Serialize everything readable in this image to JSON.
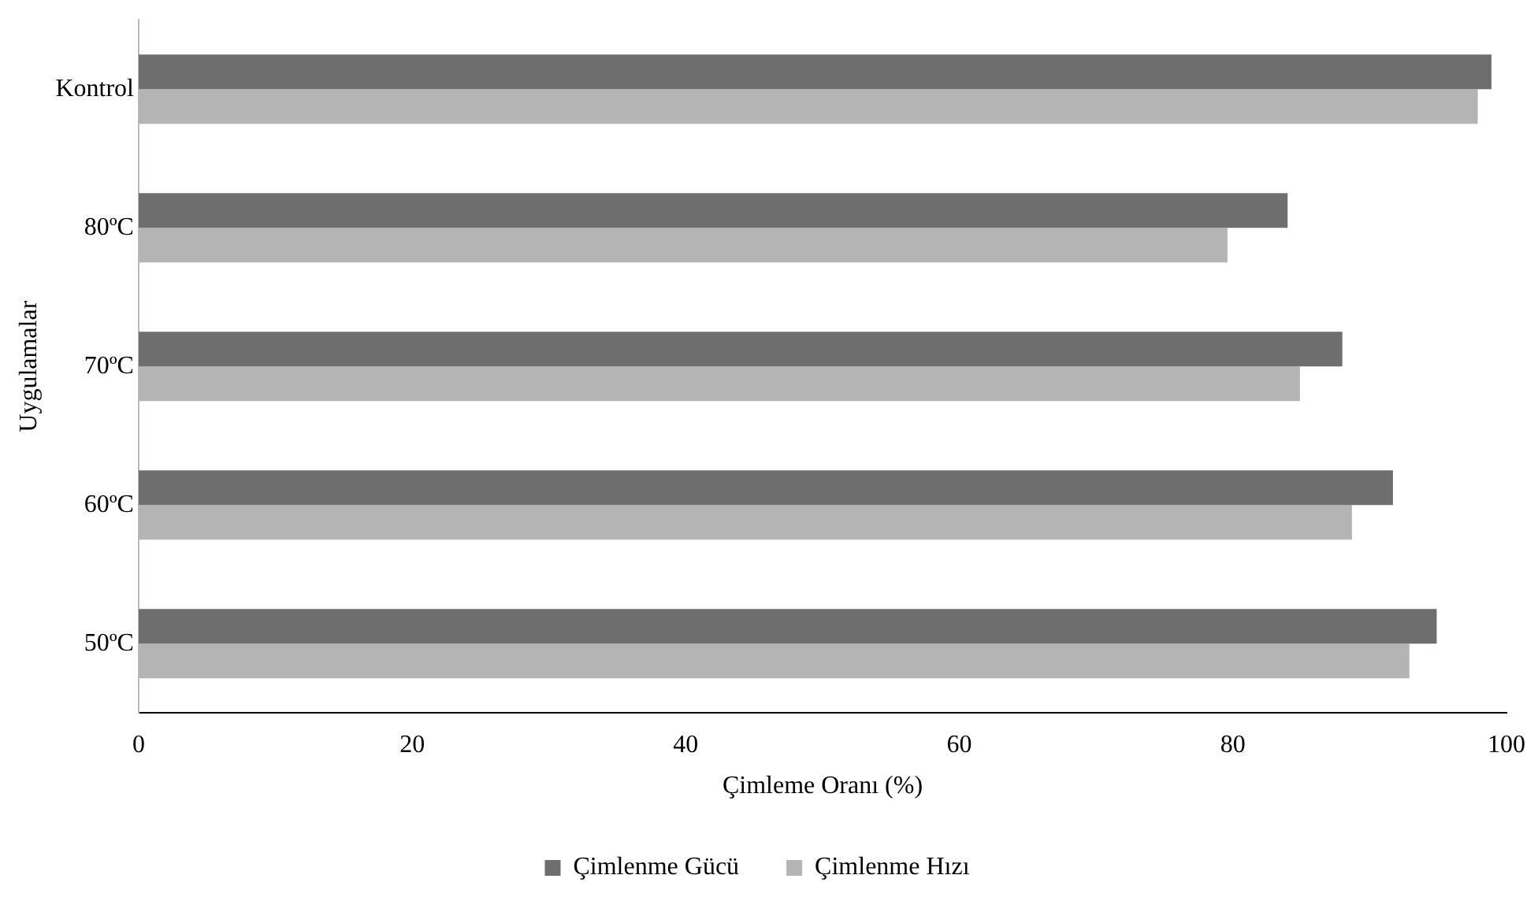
{
  "chart_data": {
    "type": "bar",
    "orientation": "horizontal",
    "xlabel": "Çimleme Oranı (%)",
    "ylabel": "Uygulamalar",
    "categories": [
      "Kontrol",
      "80ºC",
      "70ºC",
      "60ºC",
      "50ºC"
    ],
    "series": [
      {
        "name": "Çimlenme Gücü",
        "color": "#6e6e6e",
        "values": [
          98.9,
          84.0,
          88.0,
          91.7,
          94.9
        ]
      },
      {
        "name": "Çimlenme Hızı",
        "color": "#b4b4b4",
        "values": [
          97.9,
          79.6,
          84.9,
          88.7,
          92.9
        ]
      }
    ],
    "xlim": [
      0,
      100
    ],
    "xticks": [
      0,
      20,
      40,
      60,
      80,
      100
    ],
    "grid": false,
    "legend": "bottom"
  }
}
